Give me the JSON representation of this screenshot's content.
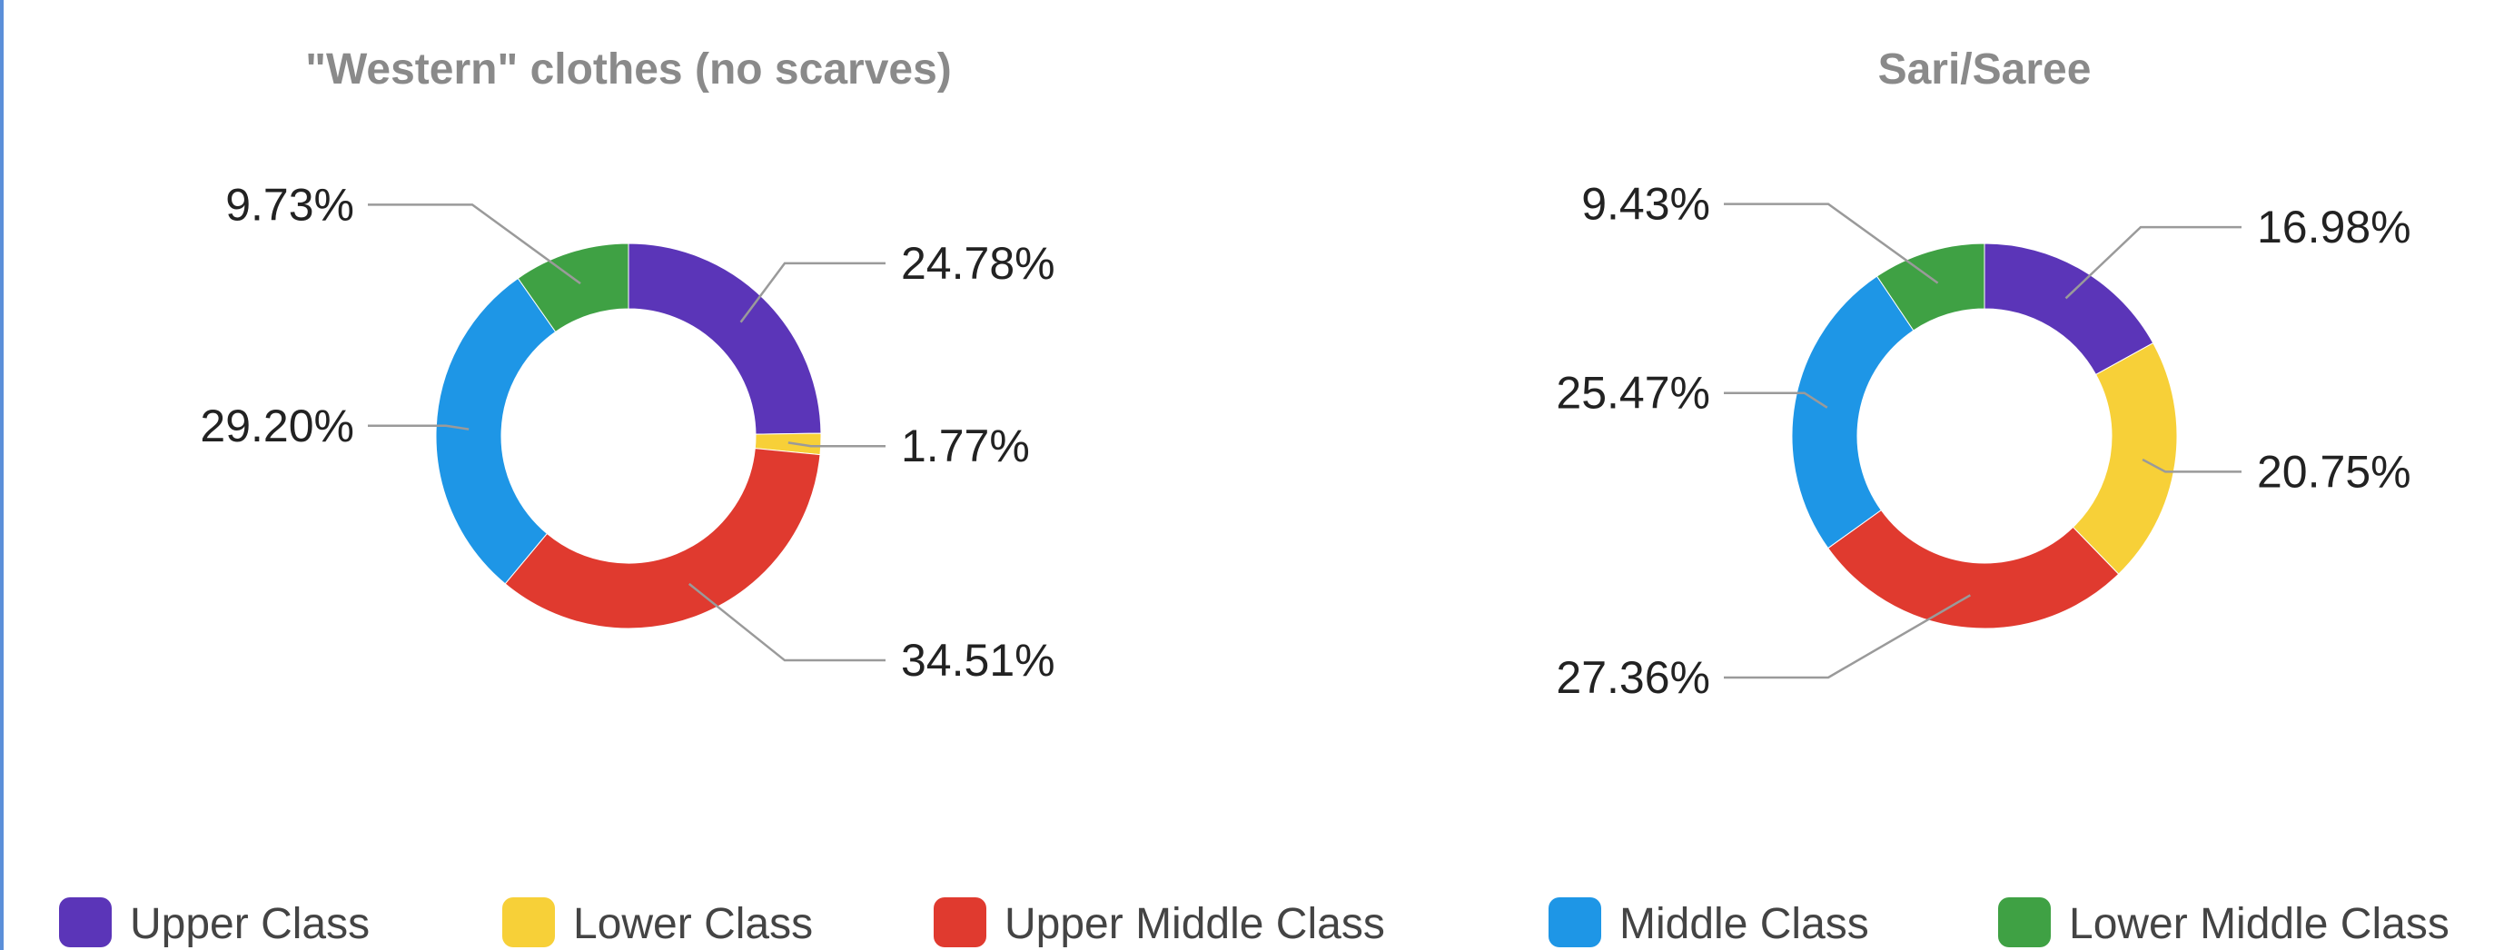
{
  "chart_data": [
    {
      "type": "pie",
      "donut": true,
      "title": "\"Western\" clothes (no scarves)",
      "slices": [
        {
          "category": "Upper Class",
          "value": 24.78,
          "label": "24.78%"
        },
        {
          "category": "Lower Class",
          "value": 1.77,
          "label": "1.77%"
        },
        {
          "category": "Upper Middle Class",
          "value": 34.51,
          "label": "34.51%"
        },
        {
          "category": "Middle Class",
          "value": 29.2,
          "label": "29.20%"
        },
        {
          "category": "Lower Middle Class",
          "value": 9.73,
          "label": "9.73%"
        }
      ]
    },
    {
      "type": "pie",
      "donut": true,
      "title": "Sari/Saree",
      "slices": [
        {
          "category": "Upper Class",
          "value": 16.98,
          "label": "16.98%"
        },
        {
          "category": "Lower Class",
          "value": 20.75,
          "label": "20.75%"
        },
        {
          "category": "Upper Middle Class",
          "value": 27.36,
          "label": "27.36%"
        },
        {
          "category": "Middle Class",
          "value": 25.47,
          "label": "25.47%"
        },
        {
          "category": "Lower Middle Class",
          "value": 9.43,
          "label": "9.43%"
        }
      ]
    }
  ],
  "legend": {
    "placement": "bottom",
    "items": [
      {
        "label": "Upper Class",
        "color": "#5b35b8"
      },
      {
        "label": "Lower Class",
        "color": "#f7d038"
      },
      {
        "label": "Upper Middle Class",
        "color": "#e03a2f"
      },
      {
        "label": "Middle Class",
        "color": "#1e96e6"
      },
      {
        "label": "Lower Middle Class",
        "color": "#3fa144"
      }
    ]
  }
}
